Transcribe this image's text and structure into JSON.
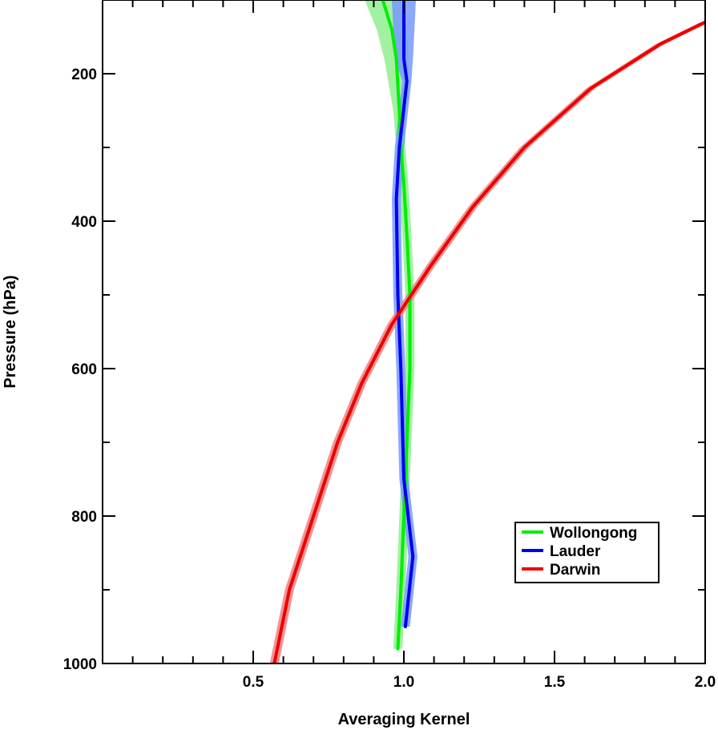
{
  "chart_data": {
    "type": "line",
    "xlabel": "Averaging Kernel",
    "ylabel": "Pressure (hPa)",
    "xlim": [
      0.0,
      2.0
    ],
    "ylim": [
      1000,
      100
    ],
    "y_inverted": true,
    "x_ticks": [
      0.5,
      1.0,
      1.5,
      2.0
    ],
    "x_tick_labels": [
      "0.5",
      "1.0",
      "1.5",
      "2.0"
    ],
    "y_ticks": [
      200,
      400,
      600,
      800,
      1000
    ],
    "y_tick_labels": [
      "200",
      "400",
      "600",
      "800",
      "1000"
    ],
    "grid": false,
    "legend_position": "bottom-right",
    "series": [
      {
        "name": "Wollongong",
        "color": "#00ee00",
        "band_color": "#90ee90",
        "x": [
          0.98,
          0.99,
          1.0,
          1.01,
          1.02,
          1.02,
          1.01,
          1.0,
          0.99,
          0.985,
          0.975,
          0.96,
          0.93
        ],
        "y": [
          980,
          900,
          800,
          700,
          600,
          500,
          420,
          350,
          300,
          250,
          180,
          140,
          100
        ],
        "band_half_width": [
          0.015,
          0.015,
          0.015,
          0.015,
          0.015,
          0.015,
          0.015,
          0.015,
          0.015,
          0.02,
          0.04,
          0.05,
          0.06
        ]
      },
      {
        "name": "Lauder",
        "color": "#0000ee",
        "band_color": "#7799ff",
        "x": [
          1.005,
          1.03,
          1.0,
          0.99,
          0.98,
          0.975,
          0.985,
          1.01,
          1.0,
          1.0
        ],
        "y": [
          950,
          855,
          750,
          600,
          500,
          370,
          300,
          210,
          180,
          100
        ],
        "band_half_width": [
          0.015,
          0.015,
          0.015,
          0.015,
          0.015,
          0.015,
          0.015,
          0.015,
          0.03,
          0.04
        ]
      },
      {
        "name": "Darwin",
        "color": "#ee0000",
        "band_color": "#f08080",
        "x": [
          0.57,
          0.62,
          0.7,
          0.78,
          0.86,
          0.96,
          1.09,
          1.23,
          1.4,
          1.62,
          1.85,
          2.0
        ],
        "y": [
          1000,
          900,
          800,
          700,
          620,
          540,
          460,
          380,
          300,
          220,
          160,
          130
        ],
        "band_half_width": [
          0.015,
          0.015,
          0.015,
          0.015,
          0.015,
          0.015,
          0.015,
          0.015,
          0.015,
          0.015,
          0.015,
          0.015
        ]
      }
    ]
  }
}
